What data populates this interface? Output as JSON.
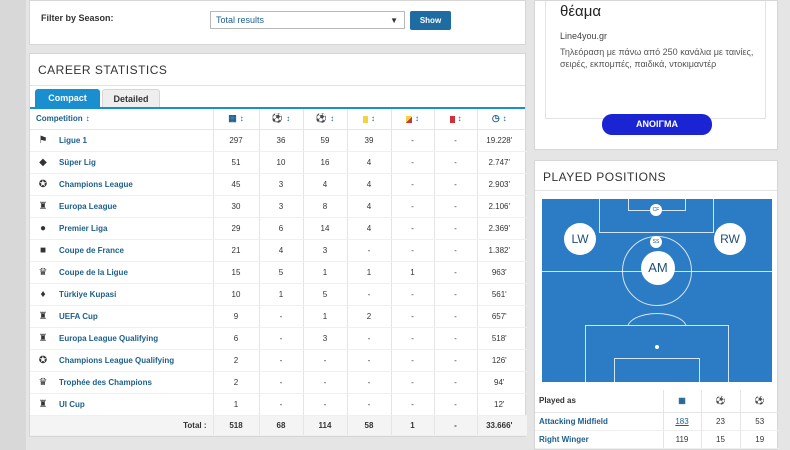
{
  "filter": {
    "label": "Filter by Season:",
    "selected": "Total results",
    "button": "Show"
  },
  "career": {
    "title": "CAREER STATISTICS",
    "tabs": [
      {
        "label": "Compact",
        "active": true
      },
      {
        "label": "Detailed",
        "active": false
      }
    ],
    "columns": {
      "competition": "Competition",
      "sort_glyph": "↕",
      "icons": [
        "appearances-icon",
        "goals-icon",
        "assists-icon",
        "yellow-card-icon",
        "second-yellow-icon",
        "red-card-icon",
        "minutes-icon"
      ]
    },
    "rows": [
      {
        "logo": "ligue-1-icon",
        "glyph": "⚑",
        "name": "Ligue 1",
        "apps": "297",
        "goals": "36",
        "assists": "59",
        "yellow": "39",
        "yellow_red": "-",
        "red": "-",
        "minutes": "19.228'"
      },
      {
        "logo": "super-lig-icon",
        "glyph": "◆",
        "name": "Süper Lig",
        "apps": "51",
        "goals": "10",
        "assists": "16",
        "yellow": "4",
        "yellow_red": "-",
        "red": "-",
        "minutes": "2.747'"
      },
      {
        "logo": "champions-league-icon",
        "glyph": "✪",
        "name": "Champions League",
        "apps": "45",
        "goals": "3",
        "assists": "4",
        "yellow": "4",
        "yellow_red": "-",
        "red": "-",
        "minutes": "2.903'"
      },
      {
        "logo": "europa-league-icon",
        "glyph": "♜",
        "name": "Europa League",
        "apps": "30",
        "goals": "3",
        "assists": "8",
        "yellow": "4",
        "yellow_red": "-",
        "red": "-",
        "minutes": "2.106'"
      },
      {
        "logo": "premier-liga-icon",
        "glyph": "●",
        "name": "Premier Liga",
        "apps": "29",
        "goals": "6",
        "assists": "14",
        "yellow": "4",
        "yellow_red": "-",
        "red": "-",
        "minutes": "2.369'"
      },
      {
        "logo": "coupe-de-france-icon",
        "glyph": "■",
        "name": "Coupe de France",
        "apps": "21",
        "goals": "4",
        "assists": "3",
        "yellow": "-",
        "yellow_red": "-",
        "red": "-",
        "minutes": "1.382'"
      },
      {
        "logo": "coupe-de-la-ligue-icon",
        "glyph": "♛",
        "name": "Coupe de la Ligue",
        "apps": "15",
        "goals": "5",
        "assists": "1",
        "yellow": "1",
        "yellow_red": "1",
        "red": "-",
        "minutes": "963'"
      },
      {
        "logo": "turkiye-kupasi-icon",
        "glyph": "♦",
        "name": "Türkiye Kupasi",
        "apps": "10",
        "goals": "1",
        "assists": "5",
        "yellow": "-",
        "yellow_red": "-",
        "red": "-",
        "minutes": "561'"
      },
      {
        "logo": "uefa-cup-icon",
        "glyph": "♜",
        "name": "UEFA Cup",
        "apps": "9",
        "goals": "-",
        "assists": "1",
        "yellow": "2",
        "yellow_red": "-",
        "red": "-",
        "minutes": "657'"
      },
      {
        "logo": "europa-league-qualifying-icon",
        "glyph": "♜",
        "name": "Europa League Qualifying",
        "apps": "6",
        "goals": "-",
        "assists": "3",
        "yellow": "-",
        "yellow_red": "-",
        "red": "-",
        "minutes": "518'"
      },
      {
        "logo": "champions-league-qualifying-icon",
        "glyph": "✪",
        "name": "Champions League Qualifying",
        "apps": "2",
        "goals": "-",
        "assists": "-",
        "yellow": "-",
        "yellow_red": "-",
        "red": "-",
        "minutes": "126'"
      },
      {
        "logo": "trophee-des-champions-icon",
        "glyph": "♛",
        "name": "Trophée des Champions",
        "apps": "2",
        "goals": "-",
        "assists": "-",
        "yellow": "-",
        "yellow_red": "-",
        "red": "-",
        "minutes": "94'"
      },
      {
        "logo": "ui-cup-icon",
        "glyph": "♜",
        "name": "UI Cup",
        "apps": "1",
        "goals": "-",
        "assists": "-",
        "yellow": "-",
        "yellow_red": "-",
        "red": "-",
        "minutes": "12'"
      }
    ],
    "total": {
      "label": "Total :",
      "apps": "518",
      "goals": "68",
      "assists": "114",
      "yellow": "58",
      "yellow_red": "1",
      "red": "-",
      "minutes": "33.666'"
    }
  },
  "ad": {
    "headline": "θέαμα",
    "domain": "Line4you.gr",
    "description": "Τηλεόραση με πάνω από 250 κανάλια με ταινίες, σειρές, εκπομπές, παιδικά, ντοκιμαντέρ",
    "button": "ΑΝΟΙΓΜΑ",
    "button_color": "#1a24d2"
  },
  "positions": {
    "title": "PLAYED POSITIONS",
    "markers": {
      "cf": "CF",
      "lw": "LW",
      "rw": "RW",
      "ss": "SS",
      "am": "AM"
    },
    "table": {
      "header": "Played as",
      "icons": [
        "appearances-icon",
        "goals-icon",
        "assists-icon"
      ],
      "rows": [
        {
          "position": "Attacking Midfield",
          "apps": "183",
          "goals": "23",
          "assists": "53"
        },
        {
          "position": "Right Winger",
          "apps": "119",
          "goals": "15",
          "assists": "19"
        }
      ]
    }
  },
  "colors": {
    "accent": "#1a8fd0",
    "link": "#1d5f8c",
    "pitch": "#2b7cc4",
    "button": "#1f6ca3"
  }
}
